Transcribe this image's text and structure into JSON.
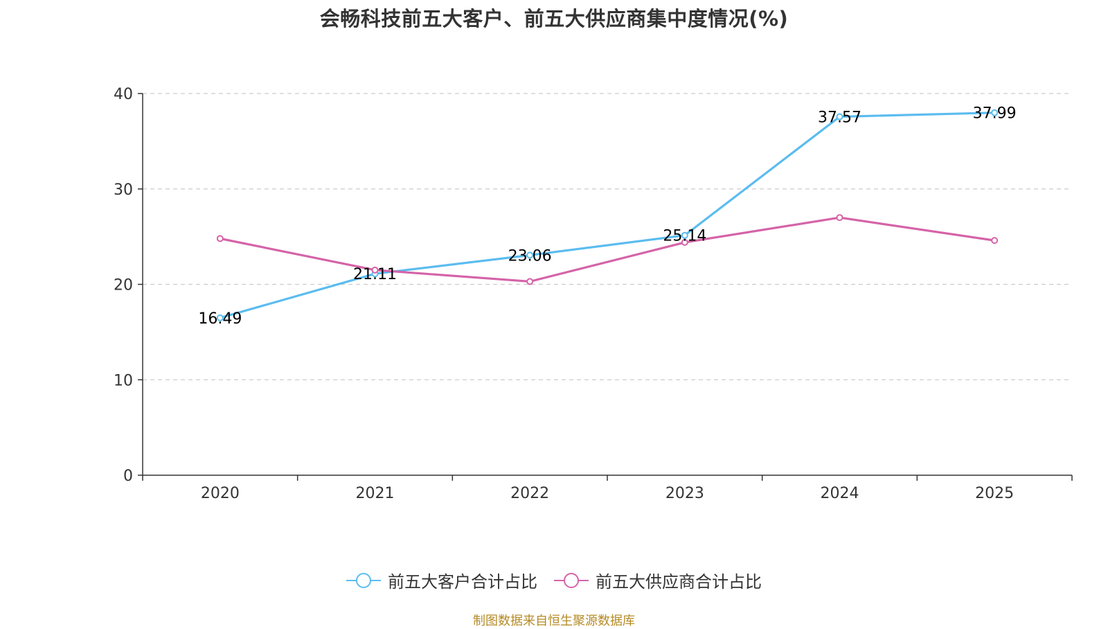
{
  "title": "会畅科技前五大客户、前五大供应商集中度情况(%)",
  "source_text": "制图数据来自恒生聚源数据库",
  "colors": {
    "customers": "#5bbcef",
    "suppliers": "#d563a8",
    "source": "#b58b26",
    "axis": "#333333",
    "grid": "#cccccc"
  },
  "chart_data": {
    "type": "line",
    "title": "会畅科技前五大客户、前五大供应商集中度情况(%)",
    "xlabel": "",
    "ylabel": "",
    "categories": [
      "2020",
      "2021",
      "2022",
      "2023",
      "2024",
      "2025"
    ],
    "ylim": [
      0,
      40
    ],
    "yticks": [
      "0",
      "10",
      "20",
      "30",
      "40"
    ],
    "grid": true,
    "legend_position": "bottom",
    "series": [
      {
        "name": "前五大客户合计占比",
        "values": [
          16.49,
          21.11,
          23.06,
          25.14,
          37.57,
          37.99
        ],
        "labels": [
          "16.49",
          "21.11",
          "23.06",
          "25.14",
          "37.57",
          "37.99"
        ],
        "show_labels": true
      },
      {
        "name": "前五大供应商合计占比",
        "values": [
          24.8,
          21.5,
          20.3,
          24.4,
          27.0,
          24.6
        ],
        "show_labels": false
      }
    ]
  }
}
